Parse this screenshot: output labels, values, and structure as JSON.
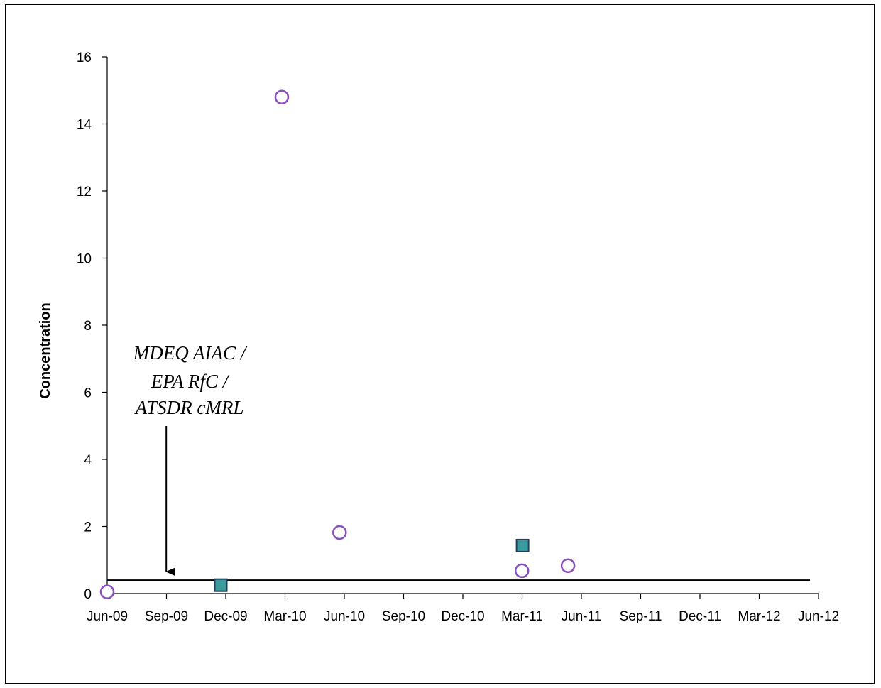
{
  "chart_data": {
    "type": "scatter",
    "title": "",
    "xlabel": "",
    "ylabel": "Concentration",
    "ylim": [
      0,
      16
    ],
    "yticks": [
      0,
      2,
      4,
      6,
      8,
      10,
      12,
      14,
      16
    ],
    "x_range": [
      "2009-06",
      "2012-06"
    ],
    "xtick_labels": [
      "Jun-09",
      "Sep-09",
      "Dec-09",
      "Mar-10",
      "Jun-10",
      "Sep-10",
      "Dec-10",
      "Mar-11",
      "Jun-11",
      "Sep-11",
      "Dec-11",
      "Mar-12",
      "Jun-12"
    ],
    "grid": false,
    "legend": "none",
    "series": [
      {
        "marker": "circle",
        "color": "#8a4fbf",
        "points": [
          {
            "x": "2009-06-01",
            "y": 0.05
          },
          {
            "x": "2010-02-25",
            "y": 14.8
          },
          {
            "x": "2010-05-25",
            "y": 1.82
          },
          {
            "x": "2011-03-02",
            "y": 0.68
          },
          {
            "x": "2011-05-12",
            "y": 0.83
          }
        ]
      },
      {
        "marker": "square",
        "color": "#3a9c9c",
        "edge_color": "#1f3f5f",
        "points": [
          {
            "x": "2009-11-23",
            "y": 0.25
          },
          {
            "x": "2011-03-03",
            "y": 1.43
          }
        ]
      }
    ],
    "reference_line": {
      "y": 0.4,
      "x_start": "2009-06-01",
      "x_end": "2012-06-01"
    },
    "annotation": {
      "lines": [
        "MDEQ AIAC /",
        "EPA RfC /",
        "ATSDR cMRL"
      ],
      "arrow_to": {
        "x": "2009-08-31",
        "y": 0.65
      }
    }
  }
}
